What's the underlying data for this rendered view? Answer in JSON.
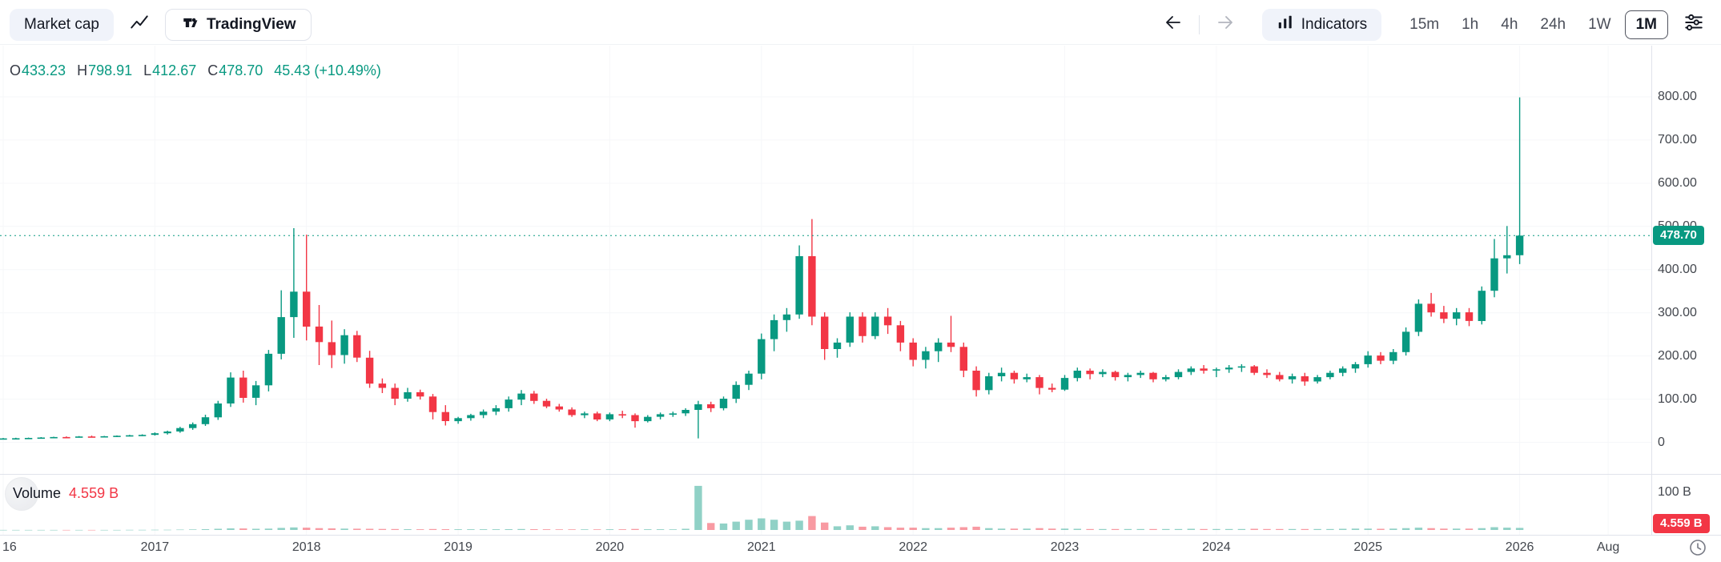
{
  "toolbar": {
    "market_cap_label": "Market cap",
    "tradingview_label": "TradingView",
    "indicators_label": "Indicators",
    "timeframes": [
      "15m",
      "1h",
      "4h",
      "24h",
      "1W",
      "1M"
    ],
    "active_timeframe": "1M"
  },
  "legend": {
    "items": [
      {
        "k": "O",
        "v": "433.23"
      },
      {
        "k": "H",
        "v": "798.91"
      },
      {
        "k": "L",
        "v": "412.67"
      },
      {
        "k": "C",
        "v": "478.70"
      }
    ],
    "change": "45.43 (+10.49%)"
  },
  "volume": {
    "label": "Volume",
    "value": "4.559 B",
    "axis_max_label": "100 B",
    "badge": "4.559 B"
  },
  "price_axis": {
    "ticks": [
      {
        "label": "800.00",
        "value": 800
      },
      {
        "label": "700.00",
        "value": 700
      },
      {
        "label": "600.00",
        "value": 600
      },
      {
        "label": "500.00",
        "value": 500
      },
      {
        "label": "400.00",
        "value": 400
      },
      {
        "label": "300.00",
        "value": 300
      },
      {
        "label": "200.00",
        "value": 200
      },
      {
        "label": "100.00",
        "value": 100
      },
      {
        "label": "0",
        "value": 0
      }
    ],
    "current_badge": "478.70"
  },
  "time_axis": {
    "ticks": [
      {
        "label": "16",
        "month": 0,
        "align": "left"
      },
      {
        "label": "2017",
        "month": 12
      },
      {
        "label": "2018",
        "month": 24
      },
      {
        "label": "2019",
        "month": 36
      },
      {
        "label": "2020",
        "month": 48
      },
      {
        "label": "2021",
        "month": 60
      },
      {
        "label": "2022",
        "month": 72
      },
      {
        "label": "2023",
        "month": 84
      },
      {
        "label": "2024",
        "month": 96
      },
      {
        "label": "2025",
        "month": 108
      },
      {
        "label": "2026",
        "month": 120
      },
      {
        "label": "Aug",
        "month": 127
      }
    ]
  },
  "colors": {
    "up": "#089981",
    "down": "#f23645",
    "vol_up": "rgba(8,153,129,0.45)",
    "vol_down": "rgba(242,54,69,0.5)",
    "grid": "#f6f7f9",
    "border": "#e0e3eb"
  },
  "chart_data": {
    "type": "candlestick",
    "interval": "1M",
    "start_month": "2016-01",
    "columns": [
      "open",
      "high",
      "low",
      "close",
      "volume_billions"
    ],
    "price_axis_range": [
      0,
      800
    ],
    "volume_axis_max_billions": 100,
    "current_price": 478.7,
    "candles": [
      [
        9,
        10,
        8,
        9,
        0.1
      ],
      [
        9,
        10.5,
        8.2,
        9.5,
        0.1
      ],
      [
        9.5,
        11,
        8.8,
        10.2,
        0.12
      ],
      [
        10.2,
        12,
        9.3,
        11.2,
        0.12
      ],
      [
        11.2,
        13,
        10,
        12.2,
        0.15
      ],
      [
        12.2,
        13.8,
        10.8,
        11.5,
        0.15
      ],
      [
        11.5,
        14.5,
        11,
        13.6,
        0.2
      ],
      [
        13.6,
        15.5,
        12,
        12.8,
        0.2
      ],
      [
        12.8,
        14.8,
        11.8,
        14,
        0.2
      ],
      [
        14,
        16,
        12.5,
        15.2,
        0.25
      ],
      [
        15.2,
        17.5,
        13.5,
        16.4,
        0.3
      ],
      [
        16.4,
        18.5,
        14.5,
        17.2,
        0.3
      ],
      [
        17.2,
        23,
        15.5,
        21,
        0.5
      ],
      [
        21,
        27,
        18,
        25,
        0.6
      ],
      [
        25,
        36,
        22,
        33,
        0.9
      ],
      [
        33,
        46,
        29,
        42,
        1.2
      ],
      [
        42,
        64,
        38,
        58,
        1.8
      ],
      [
        58,
        96,
        52,
        90,
        2.5
      ],
      [
        90,
        162,
        82,
        150,
        3.5
      ],
      [
        150,
        166,
        92,
        103,
        3.2
      ],
      [
        103,
        142,
        86,
        132,
        2.6
      ],
      [
        132,
        214,
        118,
        205,
        3
      ],
      [
        205,
        352,
        192,
        290,
        4.5
      ],
      [
        290,
        496,
        242,
        349,
        5.5
      ],
      [
        349,
        481,
        236,
        268,
        5
      ],
      [
        268,
        318,
        179,
        232,
        4
      ],
      [
        232,
        282,
        172,
        202,
        3.5
      ],
      [
        202,
        262,
        182,
        248,
        3
      ],
      [
        248,
        258,
        186,
        196,
        2.8
      ],
      [
        196,
        212,
        126,
        136,
        2.6
      ],
      [
        136,
        148,
        114,
        126,
        2.2
      ],
      [
        126,
        136,
        86,
        101,
        2
      ],
      [
        101,
        126,
        94,
        116,
        1.8
      ],
      [
        116,
        122,
        99,
        106,
        1.6
      ],
      [
        106,
        112,
        53,
        70,
        2
      ],
      [
        70,
        86,
        39,
        49,
        1.8
      ],
      [
        49,
        59,
        43,
        56,
        1.5
      ],
      [
        56,
        66,
        50,
        63,
        1.5
      ],
      [
        63,
        76,
        56,
        71,
        1.6
      ],
      [
        71,
        86,
        63,
        79,
        1.6
      ],
      [
        79,
        106,
        71,
        99,
        1.8
      ],
      [
        99,
        121,
        86,
        113,
        2
      ],
      [
        113,
        119,
        89,
        96,
        1.8
      ],
      [
        96,
        101,
        79,
        83,
        1.5
      ],
      [
        83,
        89,
        71,
        76,
        1.4
      ],
      [
        76,
        81,
        59,
        63,
        1.4
      ],
      [
        63,
        71,
        56,
        67,
        1.3
      ],
      [
        67,
        71,
        49,
        53,
        1.3
      ],
      [
        53,
        69,
        49,
        65,
        1.5
      ],
      [
        65,
        73,
        56,
        63,
        1.5
      ],
      [
        63,
        67,
        34,
        49,
        2.2
      ],
      [
        49,
        63,
        46,
        59,
        1.6
      ],
      [
        59,
        69,
        53,
        65,
        1.5
      ],
      [
        65,
        71,
        59,
        67,
        1.4
      ],
      [
        67,
        79,
        61,
        75,
        2.5
      ],
      [
        75,
        96,
        9,
        88,
        95
      ],
      [
        88,
        94,
        70,
        79,
        15
      ],
      [
        79,
        106,
        74,
        101,
        14
      ],
      [
        101,
        141,
        91,
        133,
        18
      ],
      [
        133,
        166,
        121,
        159,
        22
      ],
      [
        159,
        252,
        146,
        239,
        25
      ],
      [
        239,
        296,
        211,
        283,
        22
      ],
      [
        283,
        311,
        256,
        296,
        18
      ],
      [
        296,
        456,
        286,
        431,
        20
      ],
      [
        431,
        517,
        271,
        291,
        30
      ],
      [
        291,
        301,
        191,
        216,
        16
      ],
      [
        216,
        241,
        196,
        231,
        8
      ],
      [
        231,
        301,
        221,
        291,
        10
      ],
      [
        291,
        301,
        231,
        246,
        7
      ],
      [
        246,
        301,
        239,
        291,
        8
      ],
      [
        291,
        311,
        251,
        271,
        6
      ],
      [
        271,
        281,
        211,
        231,
        5
      ],
      [
        231,
        241,
        176,
        191,
        5
      ],
      [
        191,
        221,
        171,
        211,
        4
      ],
      [
        211,
        241,
        186,
        231,
        4
      ],
      [
        231,
        293,
        209,
        221,
        5
      ],
      [
        221,
        231,
        151,
        166,
        6
      ],
      [
        166,
        176,
        106,
        121,
        7
      ],
      [
        121,
        161,
        111,
        153,
        4
      ],
      [
        153,
        173,
        141,
        161,
        3
      ],
      [
        161,
        166,
        136,
        146,
        3
      ],
      [
        146,
        159,
        139,
        151,
        3
      ],
      [
        151,
        156,
        111,
        126,
        4
      ],
      [
        126,
        136,
        116,
        122,
        3
      ],
      [
        122,
        156,
        119,
        149,
        3
      ],
      [
        149,
        173,
        141,
        166,
        2.5
      ],
      [
        166,
        171,
        146,
        158,
        2
      ],
      [
        158,
        169,
        151,
        163,
        2
      ],
      [
        163,
        166,
        143,
        151,
        2
      ],
      [
        151,
        161,
        141,
        156,
        2
      ],
      [
        156,
        166,
        149,
        161,
        2
      ],
      [
        161,
        163,
        139,
        146,
        2
      ],
      [
        146,
        156,
        141,
        151,
        2
      ],
      [
        151,
        169,
        146,
        163,
        2
      ],
      [
        163,
        176,
        156,
        171,
        2.5
      ],
      [
        171,
        179,
        159,
        166,
        2
      ],
      [
        166,
        173,
        151,
        169,
        2
      ],
      [
        169,
        179,
        161,
        173,
        2
      ],
      [
        173,
        181,
        163,
        176,
        2
      ],
      [
        176,
        179,
        156,
        161,
        2.5
      ],
      [
        161,
        169,
        149,
        156,
        2
      ],
      [
        156,
        163,
        141,
        146,
        2
      ],
      [
        146,
        159,
        136,
        153,
        2
      ],
      [
        153,
        161,
        131,
        141,
        2
      ],
      [
        141,
        156,
        136,
        151,
        2
      ],
      [
        151,
        166,
        146,
        161,
        2
      ],
      [
        161,
        176,
        153,
        171,
        2.5
      ],
      [
        171,
        186,
        161,
        181,
        3
      ],
      [
        181,
        211,
        173,
        201,
        3
      ],
      [
        201,
        209,
        181,
        189,
        2.5
      ],
      [
        189,
        216,
        181,
        209,
        3
      ],
      [
        209,
        266,
        201,
        256,
        4
      ],
      [
        256,
        331,
        246,
        321,
        5
      ],
      [
        321,
        346,
        291,
        301,
        4
      ],
      [
        301,
        316,
        276,
        286,
        3
      ],
      [
        286,
        311,
        271,
        301,
        3
      ],
      [
        301,
        311,
        269,
        281,
        3
      ],
      [
        281,
        361,
        273,
        351,
        4
      ],
      [
        351,
        471,
        336,
        426,
        6
      ],
      [
        426,
        501,
        391,
        433.23,
        5
      ],
      [
        433.23,
        798.91,
        412.67,
        478.7,
        4.559
      ]
    ]
  }
}
